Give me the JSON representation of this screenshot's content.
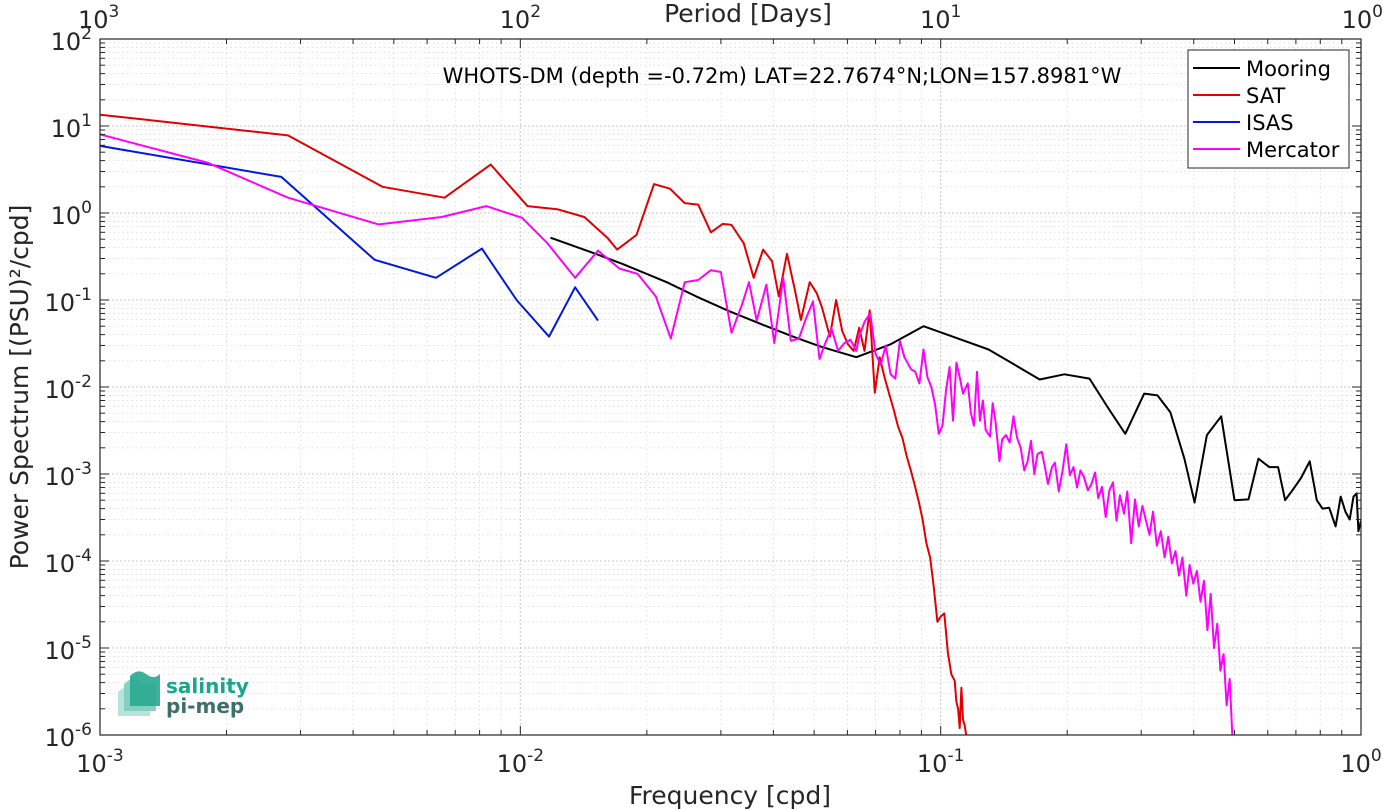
{
  "chart_data": {
    "type": "line",
    "title": "WHOTS-DM (depth =-0.72m) LAT=22.7674°N;LON=157.8981°W",
    "xlabel": "Frequency [cpd]",
    "ylabel": "Power Spectrum [(PSU)²/cpd]",
    "top_xlabel": "Period [Days]",
    "x_scale": "log",
    "y_scale": "log",
    "xlim": [
      0.001,
      1
    ],
    "ylim": [
      1e-06,
      100
    ],
    "grid": true,
    "legend_position": "top-right",
    "x_ticks": [
      {
        "value": 0.001,
        "base": "10",
        "exp": "-3"
      },
      {
        "value": 0.01,
        "base": "10",
        "exp": "-2"
      },
      {
        "value": 0.1,
        "base": "10",
        "exp": "-1"
      },
      {
        "value": 1,
        "base": "10",
        "exp": "0"
      }
    ],
    "top_ticks": [
      {
        "value": 0.001,
        "base": "10",
        "exp": "3"
      },
      {
        "value": 0.01,
        "base": "10",
        "exp": "2"
      },
      {
        "value": 0.1,
        "base": "10",
        "exp": "1"
      },
      {
        "value": 1,
        "base": "10",
        "exp": "0"
      }
    ],
    "y_ticks": [
      {
        "value": 1e-06,
        "base": "10",
        "exp": "-6"
      },
      {
        "value": 1e-05,
        "base": "10",
        "exp": "-5"
      },
      {
        "value": 0.0001,
        "base": "10",
        "exp": "-4"
      },
      {
        "value": 0.001,
        "base": "10",
        "exp": "-3"
      },
      {
        "value": 0.01,
        "base": "10",
        "exp": "-2"
      },
      {
        "value": 0.1,
        "base": "10",
        "exp": "-1"
      },
      {
        "value": 1,
        "base": "10",
        "exp": "0"
      },
      {
        "value": 10,
        "base": "10",
        "exp": "1"
      },
      {
        "value": 100,
        "base": "10",
        "exp": "2"
      }
    ],
    "series": [
      {
        "name": "Mooring",
        "color": "#000000",
        "points": [
          [
            0.0118,
            0.52
          ],
          [
            0.0151,
            0.34
          ],
          [
            0.0175,
            0.26
          ],
          [
            0.0223,
            0.16
          ],
          [
            0.0262,
            0.11
          ],
          [
            0.0313,
            0.075
          ],
          [
            0.0377,
            0.052
          ],
          [
            0.0445,
            0.038
          ],
          [
            0.052,
            0.029
          ],
          [
            0.063,
            0.022
          ],
          [
            0.076,
            0.031
          ],
          [
            0.091,
            0.05
          ],
          [
            0.11,
            0.036
          ],
          [
            0.13,
            0.027
          ],
          [
            0.15,
            0.018
          ],
          [
            0.172,
            0.0122
          ],
          [
            0.197,
            0.014
          ],
          [
            0.226,
            0.0125
          ],
          [
            0.25,
            0.0058
          ],
          [
            0.275,
            0.0029
          ],
          [
            0.305,
            0.0084
          ],
          [
            0.328,
            0.008
          ],
          [
            0.352,
            0.0051
          ],
          [
            0.38,
            0.0015
          ],
          [
            0.402,
            0.00047
          ],
          [
            0.43,
            0.0028
          ],
          [
            0.465,
            0.0046
          ],
          [
            0.5,
            0.0005
          ],
          [
            0.54,
            0.00051
          ],
          [
            0.57,
            0.0015
          ],
          [
            0.605,
            0.0012
          ],
          [
            0.635,
            0.0012
          ],
          [
            0.66,
            0.0005
          ],
          [
            0.69,
            0.00067
          ],
          [
            0.72,
            0.0009
          ],
          [
            0.755,
            0.0014
          ],
          [
            0.785,
            0.0005
          ],
          [
            0.81,
            0.0004
          ],
          [
            0.84,
            0.00041
          ],
          [
            0.87,
            0.00025
          ],
          [
            0.895,
            0.00055
          ],
          [
            0.918,
            0.00037
          ],
          [
            0.94,
            0.0003
          ],
          [
            0.96,
            0.00055
          ],
          [
            0.976,
            0.0006
          ],
          [
            0.986,
            0.00022
          ],
          [
            1.0,
            0.00029
          ]
        ]
      },
      {
        "name": "SAT",
        "color": "#e00000",
        "points": [
          [
            0.001,
            13.5
          ],
          [
            0.0028,
            7.8
          ],
          [
            0.0047,
            2.0
          ],
          [
            0.0066,
            1.5
          ],
          [
            0.0085,
            3.6
          ],
          [
            0.0104,
            1.2
          ],
          [
            0.0123,
            1.1
          ],
          [
            0.0142,
            0.9
          ],
          [
            0.0161,
            0.52
          ],
          [
            0.017,
            0.38
          ],
          [
            0.0189,
            0.56
          ],
          [
            0.0208,
            2.15
          ],
          [
            0.0227,
            1.9
          ],
          [
            0.0246,
            1.3
          ],
          [
            0.0265,
            1.25
          ],
          [
            0.0284,
            0.6
          ],
          [
            0.0303,
            0.75
          ],
          [
            0.0318,
            0.73
          ],
          [
            0.034,
            0.45
          ],
          [
            0.0359,
            0.18
          ],
          [
            0.0378,
            0.38
          ],
          [
            0.0397,
            0.28
          ],
          [
            0.0412,
            0.11
          ],
          [
            0.0431,
            0.34
          ],
          [
            0.045,
            0.13
          ],
          [
            0.0465,
            0.059
          ],
          [
            0.0488,
            0.16
          ],
          [
            0.0507,
            0.12
          ],
          [
            0.0522,
            0.082
          ],
          [
            0.0545,
            0.038
          ],
          [
            0.0564,
            0.1
          ],
          [
            0.0583,
            0.044
          ],
          [
            0.0602,
            0.031
          ],
          [
            0.0621,
            0.026
          ],
          [
            0.064,
            0.048
          ],
          [
            0.0659,
            0.026
          ],
          [
            0.0678,
            0.076
          ],
          [
            0.0697,
            0.0086
          ],
          [
            0.0716,
            0.022
          ],
          [
            0.0735,
            0.013
          ],
          [
            0.0754,
            0.0084
          ],
          [
            0.0773,
            0.0055
          ],
          [
            0.0792,
            0.0035
          ],
          [
            0.0811,
            0.0026
          ],
          [
            0.083,
            0.0016
          ],
          [
            0.0849,
            0.0011
          ],
          [
            0.0868,
            0.00074
          ],
          [
            0.0887,
            0.00048
          ],
          [
            0.0906,
            0.0003
          ],
          [
            0.0925,
            0.00016
          ],
          [
            0.0944,
            0.00011
          ],
          [
            0.0963,
            5e-05
          ],
          [
            0.0982,
            2e-05
          ],
          [
            0.1,
            2.3e-05
          ],
          [
            0.102,
            2.5e-05
          ],
          [
            0.104,
            9e-06
          ],
          [
            0.106,
            5e-06
          ],
          [
            0.108,
            4.2e-06
          ],
          [
            0.109,
            2.4e-06
          ],
          [
            0.11,
            2e-06
          ],
          [
            0.111,
            1.2e-06
          ],
          [
            0.112,
            3.5e-06
          ],
          [
            0.113,
            1.5e-06
          ],
          [
            0.114,
            1.3e-06
          ],
          [
            0.115,
            1e-06
          ]
        ]
      },
      {
        "name": "ISAS",
        "color": "#0019e0",
        "points": [
          [
            0.001,
            5.9
          ],
          [
            0.0027,
            2.6
          ],
          [
            0.0045,
            0.29
          ],
          [
            0.0063,
            0.18
          ],
          [
            0.0081,
            0.39
          ],
          [
            0.0098,
            0.1
          ],
          [
            0.0117,
            0.038
          ],
          [
            0.0135,
            0.14
          ],
          [
            0.0153,
            0.058
          ]
        ]
      },
      {
        "name": "Mercator",
        "color": "#ff00ff",
        "points": [
          [
            0.001,
            8.0
          ],
          [
            0.0018,
            3.8
          ],
          [
            0.0028,
            1.5
          ],
          [
            0.0046,
            0.74
          ],
          [
            0.0065,
            0.9
          ],
          [
            0.0083,
            1.2
          ],
          [
            0.0101,
            0.88
          ],
          [
            0.0116,
            0.45
          ],
          [
            0.0135,
            0.18
          ],
          [
            0.0153,
            0.37
          ],
          [
            0.0172,
            0.23
          ],
          [
            0.019,
            0.2
          ],
          [
            0.021,
            0.11
          ],
          [
            0.0228,
            0.036
          ],
          [
            0.0246,
            0.16
          ],
          [
            0.0265,
            0.17
          ],
          [
            0.0284,
            0.22
          ],
          [
            0.03,
            0.21
          ],
          [
            0.0318,
            0.042
          ],
          [
            0.0337,
            0.089
          ],
          [
            0.035,
            0.16
          ],
          [
            0.0365,
            0.058
          ],
          [
            0.0385,
            0.15
          ],
          [
            0.0402,
            0.032
          ],
          [
            0.0422,
            0.18
          ],
          [
            0.044,
            0.034
          ],
          [
            0.046,
            0.036
          ],
          [
            0.0478,
            0.061
          ],
          [
            0.0497,
            0.096
          ],
          [
            0.0515,
            0.021
          ],
          [
            0.053,
            0.031
          ],
          [
            0.055,
            0.047
          ],
          [
            0.057,
            0.026
          ],
          [
            0.059,
            0.032
          ],
          [
            0.061,
            0.035
          ],
          [
            0.063,
            0.026
          ],
          [
            0.064,
            0.038
          ],
          [
            0.066,
            0.057
          ],
          [
            0.068,
            0.07
          ],
          [
            0.07,
            0.024
          ],
          [
            0.072,
            0.018
          ],
          [
            0.074,
            0.03
          ],
          [
            0.076,
            0.014
          ],
          [
            0.078,
            0.0125
          ],
          [
            0.08,
            0.034
          ],
          [
            0.082,
            0.022
          ],
          [
            0.085,
            0.016
          ],
          [
            0.087,
            0.015
          ],
          [
            0.089,
            0.011
          ],
          [
            0.091,
            0.027
          ],
          [
            0.093,
            0.013
          ],
          [
            0.095,
            0.01
          ],
          [
            0.097,
            0.0063
          ],
          [
            0.099,
            0.0029
          ],
          [
            0.101,
            0.0036
          ],
          [
            0.103,
            0.0093
          ],
          [
            0.105,
            0.017
          ],
          [
            0.107,
            0.0041
          ],
          [
            0.109,
            0.019
          ],
          [
            0.111,
            0.013
          ],
          [
            0.113,
            0.0084
          ],
          [
            0.116,
            0.011
          ],
          [
            0.118,
            0.005
          ],
          [
            0.12,
            0.0036
          ],
          [
            0.122,
            0.015
          ],
          [
            0.124,
            0.0041
          ],
          [
            0.126,
            0.007
          ],
          [
            0.128,
            0.0032
          ],
          [
            0.131,
            0.0027
          ],
          [
            0.133,
            0.0065
          ],
          [
            0.135,
            0.004
          ],
          [
            0.138,
            0.0014
          ],
          [
            0.14,
            0.0025
          ],
          [
            0.143,
            0.0028
          ],
          [
            0.146,
            0.0023
          ],
          [
            0.149,
            0.0046
          ],
          [
            0.152,
            0.0026
          ],
          [
            0.155,
            0.002
          ],
          [
            0.158,
            0.0011
          ],
          [
            0.161,
            0.0014
          ],
          [
            0.164,
            0.0024
          ],
          [
            0.167,
            0.001
          ],
          [
            0.17,
            0.0017
          ],
          [
            0.174,
            0.0018
          ],
          [
            0.177,
            0.0012
          ],
          [
            0.18,
            0.00077
          ],
          [
            0.184,
            0.0012
          ],
          [
            0.187,
            0.00135
          ],
          [
            0.191,
            0.00063
          ],
          [
            0.195,
            0.0011
          ],
          [
            0.199,
            0.0022
          ],
          [
            0.203,
            0.00097
          ],
          [
            0.207,
            0.0012
          ],
          [
            0.211,
            0.0007
          ],
          [
            0.215,
            0.0011
          ],
          [
            0.219,
            0.00093
          ],
          [
            0.224,
            0.00065
          ],
          [
            0.228,
            0.00075
          ],
          [
            0.233,
            0.00104
          ],
          [
            0.237,
            0.00053
          ],
          [
            0.242,
            0.00071
          ],
          [
            0.247,
            0.00032
          ],
          [
            0.252,
            0.00065
          ],
          [
            0.257,
            0.0008
          ],
          [
            0.262,
            0.00029
          ],
          [
            0.267,
            0.00057
          ],
          [
            0.273,
            0.00035
          ],
          [
            0.278,
            0.00063
          ],
          [
            0.284,
            0.00016
          ],
          [
            0.29,
            0.00051
          ],
          [
            0.296,
            0.00025
          ],
          [
            0.302,
            0.00043
          ],
          [
            0.308,
            0.00029
          ],
          [
            0.314,
            0.0002
          ],
          [
            0.32,
            0.00037
          ],
          [
            0.327,
            0.00015
          ],
          [
            0.334,
            0.00022
          ],
          [
            0.341,
            0.00011
          ],
          [
            0.348,
            0.00019
          ],
          [
            0.355,
            9.4e-05
          ],
          [
            0.362,
            0.00013
          ],
          [
            0.369,
            6.8e-05
          ],
          [
            0.376,
            0.00011
          ],
          [
            0.384,
            4e-05
          ],
          [
            0.391,
            9e-05
          ],
          [
            0.399,
            5.5e-05
          ],
          [
            0.407,
            7.7e-05
          ],
          [
            0.415,
            3.4e-05
          ],
          [
            0.423,
            5.9e-05
          ],
          [
            0.431,
            1.6e-05
          ],
          [
            0.439,
            4.2e-05
          ],
          [
            0.447,
            1e-05
          ],
          [
            0.455,
            1.9e-05
          ],
          [
            0.463,
            5.5e-06
          ],
          [
            0.471,
            8.5e-06
          ],
          [
            0.479,
            2.2e-06
          ],
          [
            0.487,
            4.4e-06
          ],
          [
            0.494,
            1e-06
          ]
        ]
      }
    ]
  },
  "logo": {
    "line1": "salinity",
    "line2": "pi-mep"
  }
}
